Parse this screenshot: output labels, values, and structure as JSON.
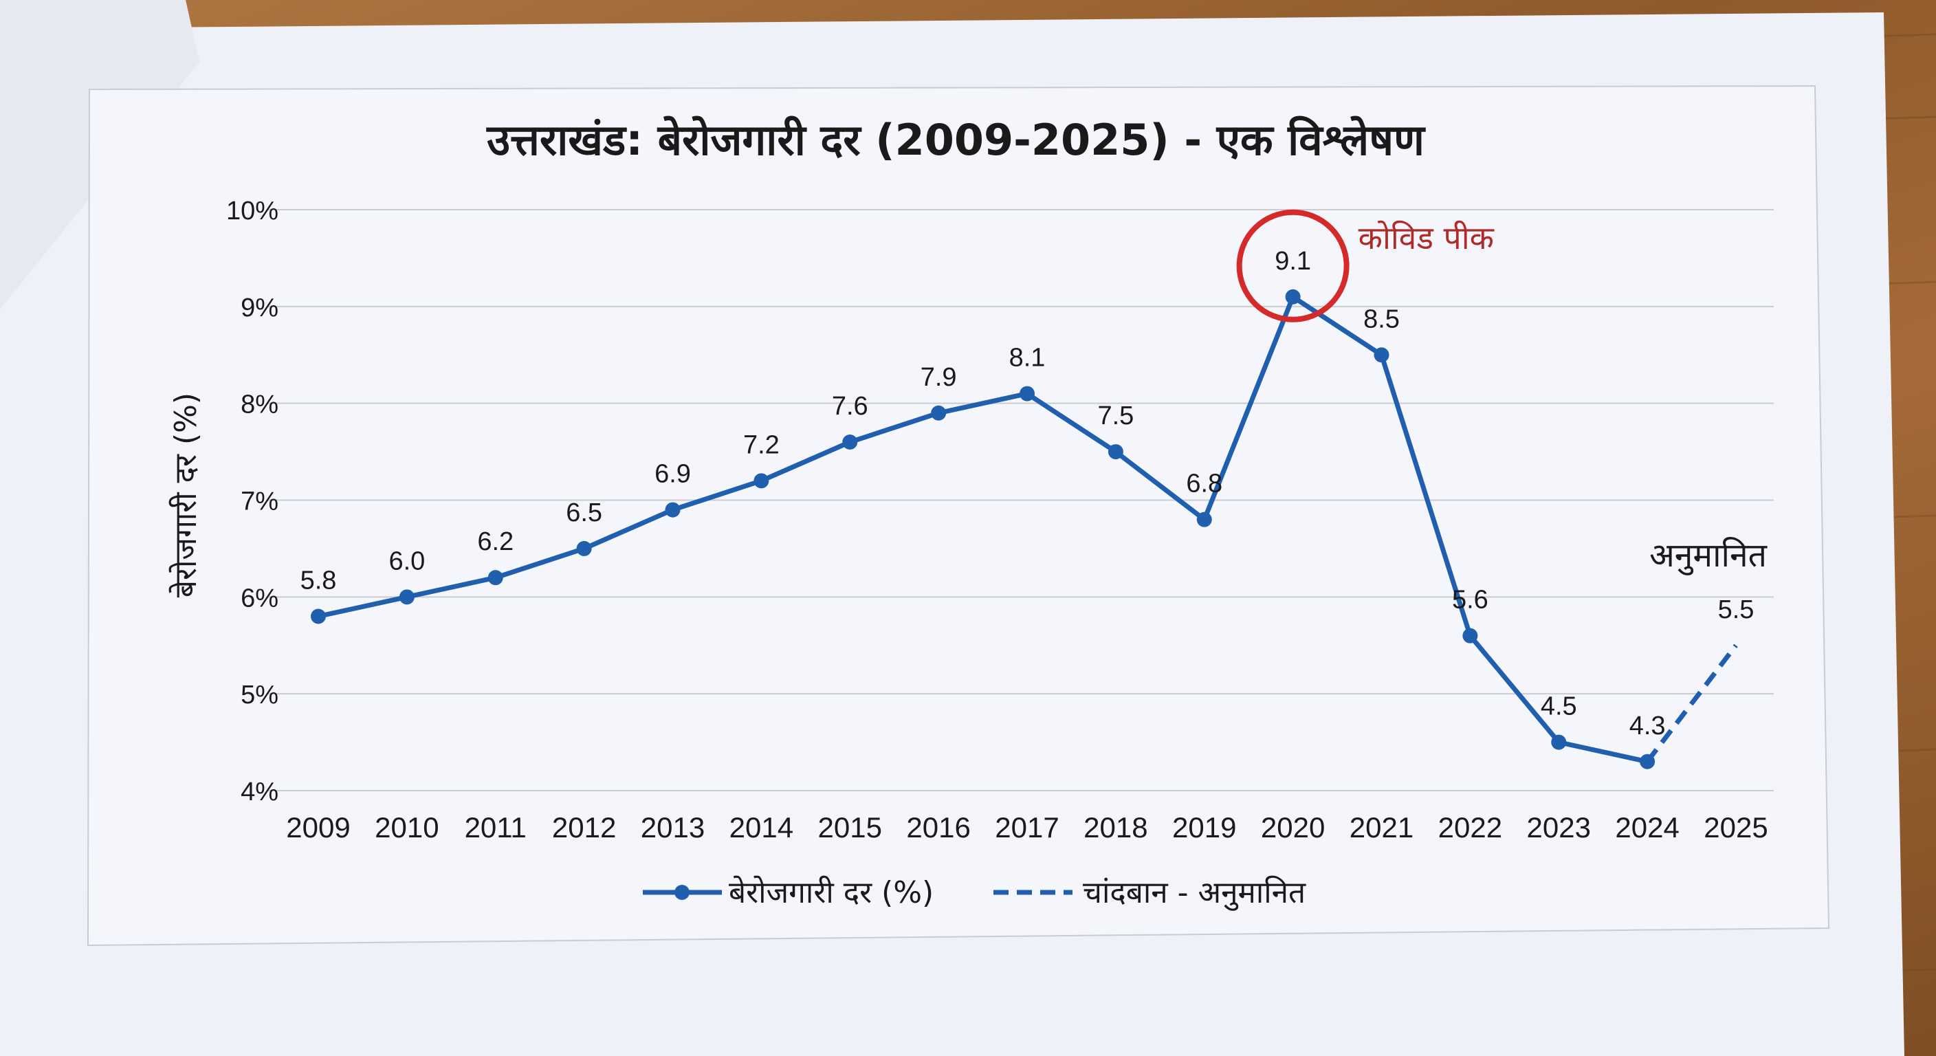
{
  "colors": {
    "series": "#1f5fae",
    "annotation_red": "#d42a2a",
    "annotation_text_red": "#b02a2a",
    "text": "#1a1a1a"
  },
  "chart_data": {
    "type": "line",
    "title": "उत्तराखंड: बेरोजगारी दर (2009-2025) - एक विश्लेषण",
    "xlabel": "",
    "ylabel": "बेरोजगारी दर (%)",
    "ylim": [
      4,
      10
    ],
    "yticks": [
      "10%",
      "9%",
      "8%",
      "7%",
      "6%",
      "5%",
      "4%"
    ],
    "grid": true,
    "legend_position": "bottom",
    "categories": [
      "2009",
      "2010",
      "2011",
      "2012",
      "2013",
      "2014",
      "2015",
      "2016",
      "2017",
      "2018",
      "2019",
      "2020",
      "2021",
      "2022",
      "2023",
      "2024",
      "2025"
    ],
    "series": [
      {
        "name": "बेरोजगारी दर (%)",
        "style": "solid-with-markers",
        "values": [
          5.8,
          6.0,
          6.2,
          6.5,
          6.9,
          7.2,
          7.6,
          7.9,
          8.1,
          7.5,
          6.8,
          9.1,
          8.5,
          5.6,
          4.5,
          4.3,
          null
        ]
      },
      {
        "name": "चांदबान - अनुमानित",
        "style": "dashed",
        "values": [
          null,
          null,
          null,
          null,
          null,
          null,
          null,
          null,
          null,
          null,
          null,
          null,
          null,
          null,
          null,
          4.3,
          5.5
        ]
      }
    ],
    "data_labels": [
      "5.8",
      "6.0",
      "6.2",
      "6.5",
      "6.9",
      "7.2",
      "7.6",
      "7.9",
      "8.1",
      "7.5",
      "6.8",
      "9.1",
      "8.5",
      "5.6",
      "4.5",
      "4.3",
      "5.5"
    ],
    "annotations": [
      {
        "text": "कोविड पीक",
        "category": "2020",
        "value": 9.1,
        "marker": "circle"
      },
      {
        "text": "अनुमानित",
        "category": "2025",
        "value": 5.5
      }
    ]
  }
}
